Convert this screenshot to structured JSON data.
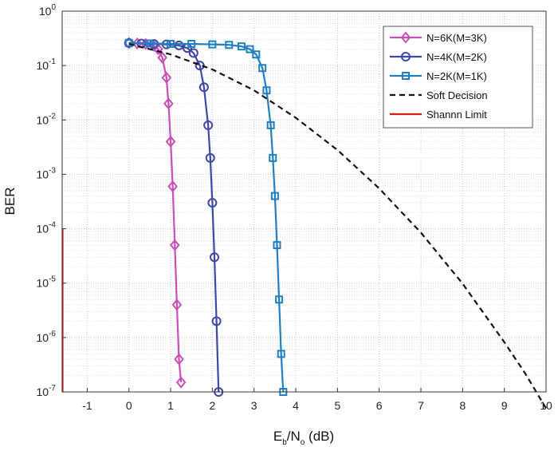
{
  "chart_data": {
    "type": "line",
    "ylabel": "BER",
    "xlabel": {
      "main": "E",
      "sub1": "b",
      "slash": "/N",
      "sub2": "o",
      "unit": " (dB)"
    },
    "xlim": [
      -1.6,
      10
    ],
    "ylim_exp": [
      -7,
      0
    ],
    "yscale": "log",
    "grid": true,
    "x_ticks": [
      -1,
      0,
      1,
      2,
      3,
      4,
      5,
      6,
      7,
      8,
      9,
      10
    ],
    "y_ticks": [
      {
        "base": "10",
        "exp": "0",
        "value": 1
      },
      {
        "base": "10",
        "exp": "-1",
        "value": 0.1
      },
      {
        "base": "10",
        "exp": "-2",
        "value": 0.01
      },
      {
        "base": "10",
        "exp": "-3",
        "value": 0.001
      },
      {
        "base": "10",
        "exp": "-4",
        "value": 0.0001
      },
      {
        "base": "10",
        "exp": "-5",
        "value": 1e-05
      },
      {
        "base": "10",
        "exp": "-6",
        "value": 1e-06
      },
      {
        "base": "10",
        "exp": "-7",
        "value": 1e-07
      }
    ],
    "legend_position": "top-right",
    "series": [
      {
        "name": "N=6K(M=3K)",
        "color": "#c94fb5",
        "marker": "diamond",
        "x": [
          0,
          0.2,
          0.4,
          0.6,
          0.7,
          0.8,
          0.9,
          0.95,
          1.0,
          1.05,
          1.1,
          1.15,
          1.2,
          1.25
        ],
        "y": [
          0.26,
          0.255,
          0.25,
          0.23,
          0.2,
          0.14,
          0.06,
          0.02,
          0.004,
          0.0006,
          5e-05,
          4e-06,
          4e-07,
          1.5e-07
        ]
      },
      {
        "name": "N=4K(M=2K)",
        "color": "#3c47a6",
        "marker": "circle",
        "x": [
          0,
          0.3,
          0.6,
          0.9,
          1.2,
          1.4,
          1.55,
          1.7,
          1.8,
          1.9,
          1.95,
          2.0,
          2.05,
          2.1,
          2.15
        ],
        "y": [
          0.26,
          0.255,
          0.25,
          0.245,
          0.235,
          0.21,
          0.17,
          0.1,
          0.04,
          0.008,
          0.002,
          0.0003,
          3e-05,
          2e-06,
          1e-07
        ]
      },
      {
        "name": "N=2K(M=1K)",
        "color": "#1f7fc2",
        "marker": "square",
        "x": [
          0,
          0.5,
          1.0,
          1.5,
          2.0,
          2.4,
          2.7,
          2.9,
          3.05,
          3.2,
          3.3,
          3.4,
          3.45,
          3.5,
          3.55,
          3.6,
          3.65,
          3.7
        ],
        "y": [
          0.26,
          0.255,
          0.25,
          0.25,
          0.245,
          0.24,
          0.225,
          0.2,
          0.16,
          0.09,
          0.035,
          0.008,
          0.002,
          0.0004,
          5e-05,
          5e-06,
          5e-07,
          1e-07
        ]
      },
      {
        "name": "Soft Decision",
        "color": "#111111",
        "marker": "none",
        "dash": true,
        "x": [
          0,
          1,
          2,
          3,
          4,
          5,
          6,
          7,
          8,
          9,
          9.5,
          10
        ],
        "y": [
          0.25,
          0.16,
          0.085,
          0.035,
          0.011,
          0.0028,
          0.00055,
          8.5e-05,
          9.8e-06,
          8.2e-07,
          2.2e-07,
          5e-08
        ]
      },
      {
        "name": "Shannn Limit",
        "color": "#e01818",
        "marker": "none",
        "x": [
          -1.59,
          -1.59
        ],
        "y": [
          0.0001,
          1e-07
        ]
      }
    ]
  }
}
